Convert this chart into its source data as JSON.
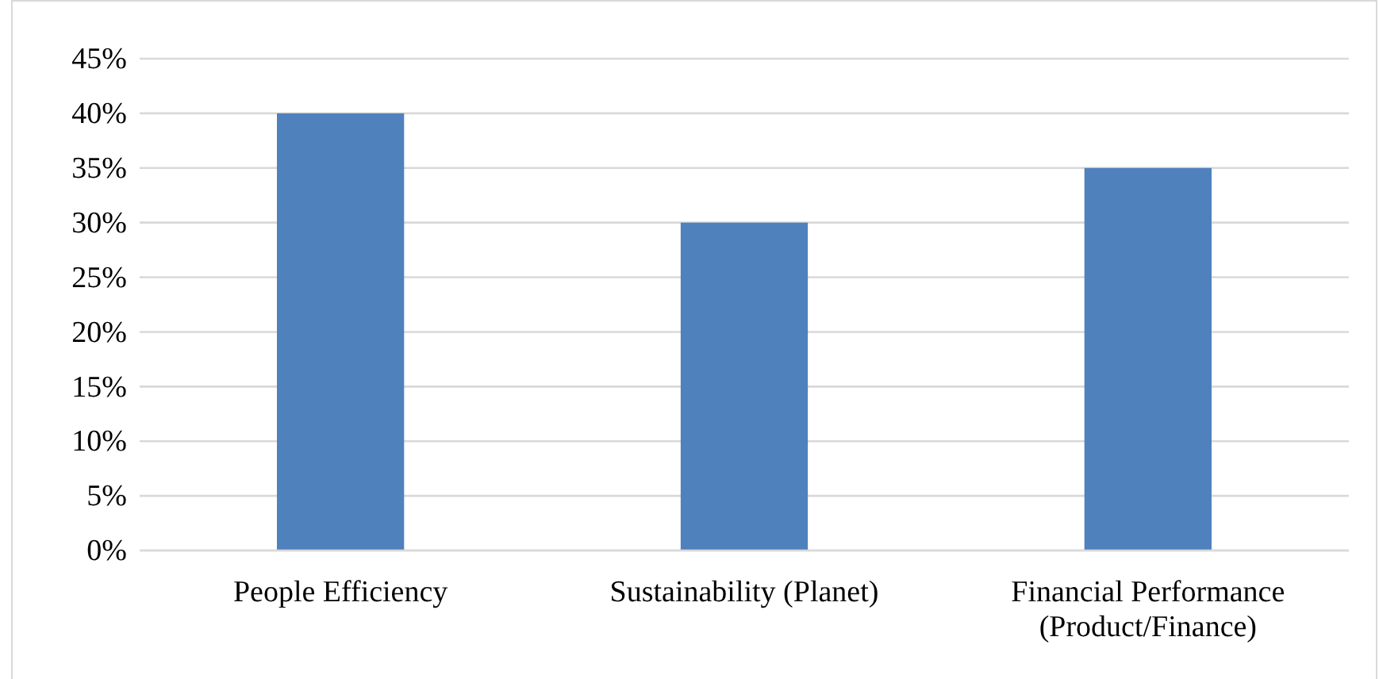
{
  "chart_data": {
    "type": "bar",
    "categories": [
      "People Efficiency",
      "Sustainability (Planet)",
      "Financial Performance (Product/Finance)"
    ],
    "values": [
      40,
      30,
      35
    ],
    "color": "#4f81bd",
    "ylim": [
      0,
      45
    ],
    "yticks": [
      {
        "value": 0,
        "label": "0%"
      },
      {
        "value": 5,
        "label": "5%"
      },
      {
        "value": 10,
        "label": "10%"
      },
      {
        "value": 15,
        "label": "15%"
      },
      {
        "value": 20,
        "label": "20%"
      },
      {
        "value": 25,
        "label": "25%"
      },
      {
        "value": 30,
        "label": "30%"
      },
      {
        "value": 35,
        "label": "35%"
      },
      {
        "value": 40,
        "label": "40%"
      },
      {
        "value": 45,
        "label": "45%"
      }
    ],
    "grid": "y"
  }
}
